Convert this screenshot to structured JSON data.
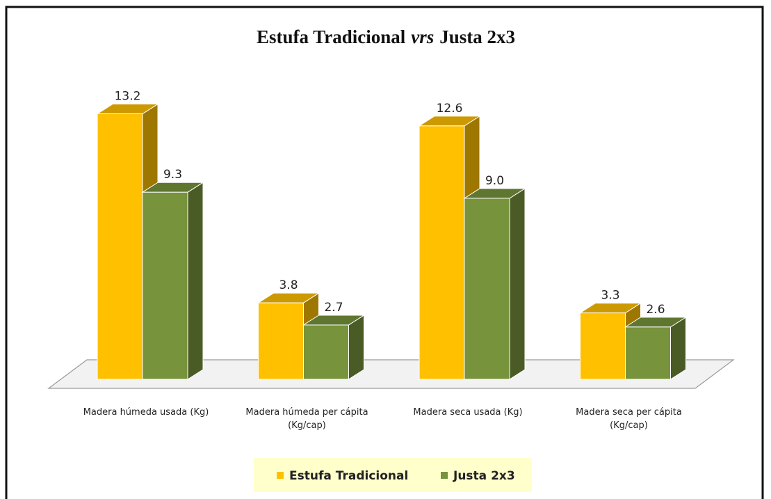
{
  "chart_data": {
    "type": "bar3d",
    "title": [
      "Estufa Tradicional",
      "vrs",
      "Justa 2x3"
    ],
    "categories": [
      "Madera húmeda usada (Kg)",
      "Madera húmeda per cápita (Kg/cap)",
      "Madera seca usada (Kg)",
      "Madera seca per cápita (Kg/cap)"
    ],
    "series": [
      {
        "name": "Estufa Tradicional",
        "color": "#FFC000",
        "values": [
          13.2,
          3.8,
          12.6,
          3.3
        ],
        "value_labels": [
          "13.2",
          "3.8",
          "12.6",
          "3.3"
        ]
      },
      {
        "name": "Justa 2x3",
        "color": "#77933C",
        "values": [
          9.3,
          2.7,
          9.0,
          2.6
        ],
        "value_labels": [
          "9.3",
          "2.7",
          "9.0",
          "2.6"
        ]
      }
    ],
    "legend": "bottom"
  }
}
